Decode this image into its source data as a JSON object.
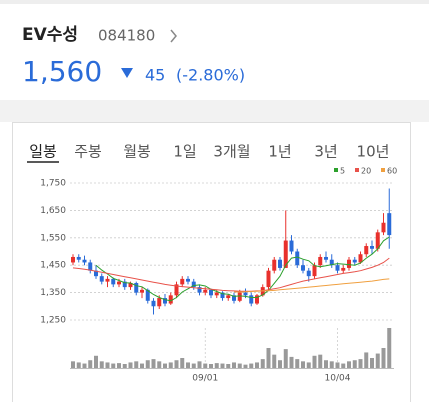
{
  "header": {
    "name": "EV수성",
    "code": "084180",
    "price": "1,560",
    "change": "45",
    "change_pct": "(-2.80%)"
  },
  "tabs": {
    "items": [
      "일봉",
      "주봉",
      "월봉",
      "1일",
      "3개월",
      "1년",
      "3년",
      "10년"
    ],
    "selected": 0
  },
  "chart_data": {
    "type": "candlestick",
    "categories": [
      null,
      null,
      null,
      null,
      null,
      null,
      null,
      null,
      null,
      null,
      null,
      null,
      null,
      null,
      null,
      null,
      null,
      null,
      null,
      null,
      null,
      null,
      null,
      "09/01",
      null,
      null,
      null,
      null,
      null,
      null,
      null,
      null,
      null,
      null,
      null,
      null,
      null,
      null,
      null,
      null,
      null,
      null,
      null,
      null,
      null,
      null,
      "10/04",
      null,
      null,
      null,
      null,
      null,
      null,
      null,
      null,
      null
    ],
    "open": [
      1460,
      1480,
      1470,
      1460,
      1430,
      1410,
      1390,
      1400,
      1380,
      1390,
      1370,
      1385,
      1350,
      1360,
      1320,
      1300,
      1330,
      1310,
      1340,
      1380,
      1400,
      1390,
      1370,
      1350,
      1360,
      1340,
      1350,
      1330,
      1340,
      1320,
      1350,
      1340,
      1310,
      1340,
      1370,
      1430,
      1470,
      1440,
      1540,
      1500,
      1450,
      1430,
      1410,
      1450,
      1480,
      1470,
      1450,
      1430,
      1440,
      1470,
      1460,
      1490,
      1520,
      1510,
      1570,
      1640
    ],
    "high": [
      1490,
      1490,
      1485,
      1470,
      1450,
      1420,
      1410,
      1405,
      1400,
      1400,
      1390,
      1390,
      1370,
      1365,
      1330,
      1340,
      1345,
      1350,
      1390,
      1410,
      1410,
      1400,
      1380,
      1370,
      1365,
      1360,
      1355,
      1345,
      1350,
      1360,
      1365,
      1350,
      1345,
      1380,
      1440,
      1480,
      1480,
      1650,
      1560,
      1510,
      1470,
      1440,
      1460,
      1490,
      1500,
      1490,
      1460,
      1450,
      1480,
      1480,
      1500,
      1530,
      1540,
      1580,
      1640,
      1730
    ],
    "low": [
      1450,
      1460,
      1450,
      1420,
      1400,
      1380,
      1370,
      1370,
      1370,
      1360,
      1360,
      1340,
      1330,
      1310,
      1270,
      1290,
      1300,
      1305,
      1330,
      1370,
      1380,
      1360,
      1340,
      1340,
      1330,
      1330,
      1320,
      1320,
      1310,
      1315,
      1330,
      1300,
      1305,
      1335,
      1360,
      1420,
      1430,
      1440,
      1490,
      1440,
      1420,
      1390,
      1400,
      1440,
      1460,
      1440,
      1420,
      1420,
      1430,
      1450,
      1455,
      1480,
      1490,
      1500,
      1560,
      1510
    ],
    "close": [
      1480,
      1470,
      1460,
      1430,
      1410,
      1390,
      1400,
      1380,
      1390,
      1370,
      1385,
      1350,
      1360,
      1320,
      1300,
      1330,
      1310,
      1340,
      1380,
      1400,
      1390,
      1370,
      1350,
      1360,
      1340,
      1350,
      1330,
      1340,
      1320,
      1350,
      1340,
      1310,
      1340,
      1370,
      1430,
      1470,
      1440,
      1540,
      1500,
      1450,
      1430,
      1410,
      1450,
      1480,
      1470,
      1450,
      1430,
      1440,
      1470,
      1460,
      1490,
      1520,
      1510,
      1570,
      1605,
      1560
    ],
    "up_color": "#e8302c",
    "down_color": "#2a6bd8",
    "series": [
      {
        "name": "5",
        "color": "#2ca02c",
        "values": [
          null,
          null,
          null,
          null,
          1450,
          1432,
          1418,
          1402,
          1394,
          1386,
          1385,
          1375,
          1371,
          1357,
          1343,
          1332,
          1324,
          1320,
          1332,
          1352,
          1364,
          1376,
          1378,
          1374,
          1362,
          1354,
          1346,
          1344,
          1336,
          1338,
          1336,
          1332,
          1332,
          1342,
          1358,
          1384,
          1410,
          1450,
          1476,
          1480,
          1472,
          1466,
          1448,
          1444,
          1448,
          1452,
          1456,
          1454,
          1452,
          1450,
          1458,
          1476,
          1490,
          1510,
          1539,
          1553
        ]
      },
      {
        "name": "20",
        "color": "#e8524a",
        "values": [
          1440,
          1438,
          1435,
          1432,
          1428,
          1424,
          1420,
          1416,
          1412,
          1408,
          1404,
          1400,
          1396,
          1392,
          1388,
          1384,
          1380,
          1377,
          1374,
          1372,
          1370,
          1368,
          1366,
          1364,
          1362,
          1360,
          1358,
          1357,
          1356,
          1355,
          1355,
          1355,
          1356,
          1357,
          1360,
          1364,
          1368,
          1374,
          1380,
          1386,
          1392,
          1396,
          1400,
          1404,
          1408,
          1412,
          1416,
          1420,
          1423,
          1426,
          1430,
          1436,
          1442,
          1450,
          1460,
          1476
        ]
      },
      {
        "name": "60",
        "color": "#f0a040",
        "values": [
          null,
          null,
          null,
          null,
          null,
          null,
          null,
          null,
          null,
          null,
          null,
          null,
          null,
          null,
          null,
          null,
          null,
          null,
          null,
          null,
          null,
          null,
          null,
          null,
          null,
          null,
          null,
          null,
          1352,
          1352,
          1353,
          1354,
          1355,
          1356,
          1357,
          1358,
          1360,
          1362,
          1364,
          1366,
          1368,
          1370,
          1372,
          1374,
          1376,
          1378,
          1380,
          1382,
          1384,
          1386,
          1388,
          1390,
          1392,
          1395,
          1398,
          1400
        ]
      }
    ],
    "volume": [
      30,
      25,
      20,
      35,
      55,
      30,
      25,
      20,
      22,
      18,
      25,
      30,
      20,
      35,
      40,
      30,
      20,
      25,
      35,
      45,
      25,
      20,
      30,
      20,
      18,
      22,
      20,
      18,
      25,
      20,
      15,
      20,
      25,
      40,
      90,
      60,
      35,
      85,
      50,
      40,
      30,
      25,
      55,
      60,
      35,
      30,
      25,
      20,
      30,
      35,
      40,
      70,
      45,
      65,
      90,
      180
    ],
    "volume_color": "#999999",
    "volume_lim": [
      0,
      180
    ],
    "ylim": [
      1228,
      1772
    ],
    "yticks": [
      {
        "value": 1250,
        "label": "1,250"
      },
      {
        "value": 1350,
        "label": "1,350"
      },
      {
        "value": 1450,
        "label": "1,450"
      },
      {
        "value": 1550,
        "label": "1,550"
      },
      {
        "value": 1650,
        "label": "1,650"
      },
      {
        "value": 1750,
        "label": "1,750"
      }
    ],
    "grid": true
  }
}
